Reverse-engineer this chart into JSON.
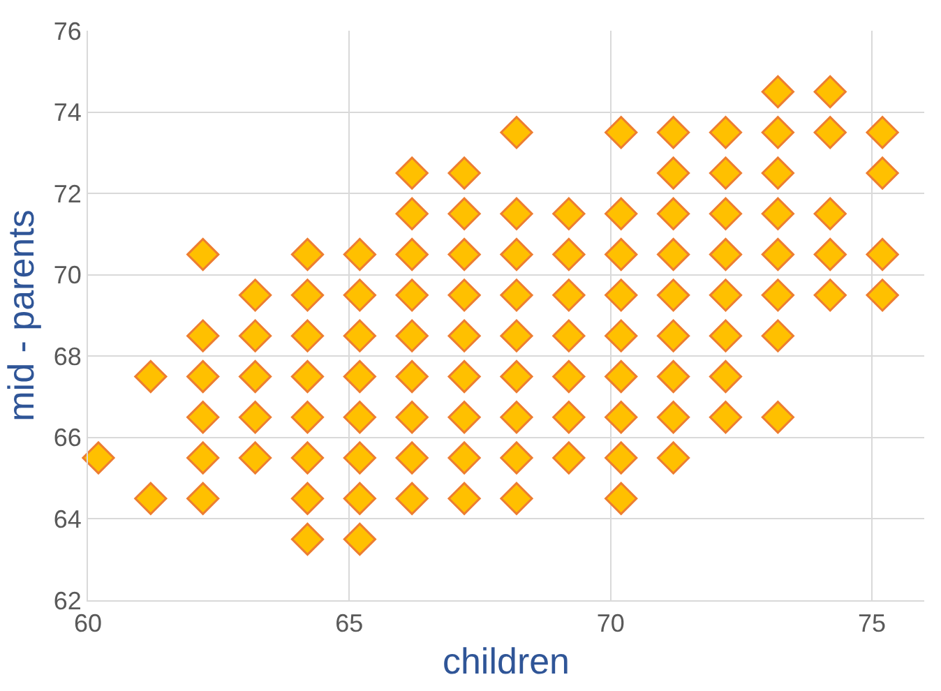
{
  "chart_data": {
    "type": "scatter",
    "xlabel": "children",
    "ylabel": "mid - parents",
    "x": [
      60.2,
      61.2,
      61.2,
      62.2,
      62.2,
      62.2,
      62.2,
      62.2,
      62.2,
      63.2,
      63.2,
      63.2,
      63.2,
      63.2,
      64.2,
      64.2,
      64.2,
      64.2,
      64.2,
      64.2,
      64.2,
      64.2,
      65.2,
      65.2,
      65.2,
      65.2,
      65.2,
      65.2,
      65.2,
      65.2,
      66.2,
      66.2,
      66.2,
      66.2,
      66.2,
      66.2,
      66.2,
      66.2,
      66.2,
      67.2,
      67.2,
      67.2,
      67.2,
      67.2,
      67.2,
      67.2,
      67.2,
      67.2,
      68.2,
      68.2,
      68.2,
      68.2,
      68.2,
      68.2,
      68.2,
      68.2,
      68.2,
      69.2,
      69.2,
      69.2,
      69.2,
      69.2,
      69.2,
      69.2,
      70.2,
      70.2,
      70.2,
      70.2,
      70.2,
      70.2,
      70.2,
      70.2,
      70.2,
      71.2,
      71.2,
      71.2,
      71.2,
      71.2,
      71.2,
      71.2,
      71.2,
      71.2,
      72.2,
      72.2,
      72.2,
      72.2,
      72.2,
      72.2,
      72.2,
      72.2,
      73.2,
      73.2,
      73.2,
      73.2,
      73.2,
      73.2,
      73.2,
      73.2,
      74.2,
      74.2,
      74.2,
      74.2,
      74.2,
      75.2,
      75.2,
      75.2,
      75.2
    ],
    "values": [
      65.5,
      67.5,
      64.5,
      70.5,
      68.5,
      67.5,
      66.5,
      65.5,
      64.5,
      69.5,
      68.5,
      67.5,
      66.5,
      65.5,
      70.5,
      69.5,
      68.5,
      67.5,
      66.5,
      65.5,
      64.5,
      63.5,
      70.5,
      69.5,
      68.5,
      67.5,
      66.5,
      65.5,
      64.5,
      63.5,
      72.5,
      71.5,
      70.5,
      69.5,
      68.5,
      67.5,
      66.5,
      65.5,
      64.5,
      72.5,
      71.5,
      70.5,
      69.5,
      68.5,
      67.5,
      66.5,
      65.5,
      64.5,
      73.5,
      71.5,
      70.5,
      69.5,
      68.5,
      67.5,
      66.5,
      65.5,
      64.5,
      71.5,
      70.5,
      69.5,
      68.5,
      67.5,
      66.5,
      65.5,
      73.5,
      71.5,
      70.5,
      69.5,
      68.5,
      67.5,
      66.5,
      65.5,
      64.5,
      73.5,
      72.5,
      71.5,
      70.5,
      69.5,
      68.5,
      67.5,
      66.5,
      65.5,
      73.5,
      72.5,
      71.5,
      70.5,
      69.5,
      68.5,
      67.5,
      66.5,
      74.5,
      73.5,
      72.5,
      71.5,
      70.5,
      69.5,
      68.5,
      66.5,
      74.5,
      73.5,
      71.5,
      70.5,
      69.5,
      73.5,
      72.5,
      70.5,
      69.5
    ],
    "color": "#ffc000",
    "marker": "diamond",
    "xlim": [
      60,
      76
    ],
    "xticks": [
      60,
      65,
      70,
      75
    ],
    "ylim": [
      62,
      76
    ],
    "yticks": [
      62,
      64,
      66,
      68,
      70,
      72,
      74,
      76
    ],
    "grid": true,
    "legend": false
  }
}
